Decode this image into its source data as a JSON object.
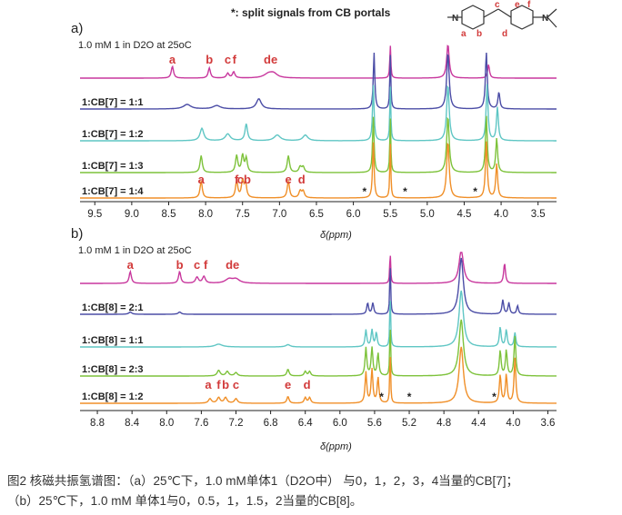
{
  "header": {
    "legend_note": "*: split signals from CB portals",
    "structure_labels": [
      "a",
      "b",
      "c",
      "d",
      "e",
      "f"
    ],
    "structure_name": "1"
  },
  "chart_data": [
    {
      "type": "line",
      "panel_label": "a)",
      "subtitle": "1.0 mM 1 in D2O at 25oC",
      "xlabel": "δ(ppm)",
      "xlim": [
        9.7,
        3.25
      ],
      "x_reversed": true,
      "x_ticks": [
        9.5,
        9.0,
        8.5,
        8.0,
        7.5,
        7.0,
        6.5,
        6.0,
        5.5,
        5.0,
        4.5,
        4.0,
        3.5
      ],
      "x_tick_labels": [
        "9.5",
        "9.0",
        "8.5",
        "8.0",
        "7.5",
        "7.0",
        "6.5",
        "6.0",
        "5.5",
        "5.0",
        "4.5",
        "4.0",
        "3.5"
      ],
      "series": [
        {
          "name": "",
          "color": "#c8379d",
          "peaks": [
            [
              8.45,
              0.35,
              0.018
            ],
            [
              7.95,
              0.3,
              0.018
            ],
            [
              7.7,
              0.14,
              0.02
            ],
            [
              7.62,
              0.18,
              0.02
            ],
            [
              7.15,
              0.12,
              0.07
            ],
            [
              7.08,
              0.12,
              0.06
            ],
            [
              5.5,
              1.0,
              0.008
            ],
            [
              4.72,
              1.0,
              0.02
            ],
            [
              4.17,
              0.4,
              0.015
            ]
          ],
          "labels": [
            {
              "text": "a",
              "x": 8.45
            },
            {
              "text": "b",
              "x": 7.95
            },
            {
              "text": "c",
              "x": 7.7
            },
            {
              "text": "f",
              "x": 7.61
            },
            {
              "text": "de",
              "x": 7.12
            }
          ]
        },
        {
          "name": "1:CB[7] = 1:1",
          "color": "#4b4da6",
          "peaks": [
            [
              8.25,
              0.08,
              0.06
            ],
            [
              7.85,
              0.06,
              0.06
            ],
            [
              7.28,
              0.18,
              0.04
            ],
            [
              5.72,
              1.0,
              0.012
            ],
            [
              5.5,
              1.0,
              0.008
            ],
            [
              4.72,
              1.0,
              0.02
            ],
            [
              4.2,
              1.0,
              0.015
            ],
            [
              4.03,
              0.3,
              0.015
            ]
          ]
        },
        {
          "name": "1:CB[7] = 1:2",
          "color": "#5fc6c4",
          "peaks": [
            [
              8.05,
              0.22,
              0.03
            ],
            [
              7.7,
              0.12,
              0.04
            ],
            [
              7.45,
              0.3,
              0.02
            ],
            [
              7.03,
              0.1,
              0.05
            ],
            [
              6.65,
              0.1,
              0.04
            ],
            [
              5.73,
              1.0,
              0.012
            ],
            [
              5.5,
              1.0,
              0.008
            ],
            [
              4.72,
              1.0,
              0.02
            ],
            [
              4.19,
              1.0,
              0.015
            ],
            [
              4.05,
              0.6,
              0.015
            ]
          ]
        },
        {
          "name": "1:CB[7] = 1:3",
          "color": "#7dc23a",
          "peaks": [
            [
              8.06,
              0.3,
              0.018
            ],
            [
              7.58,
              0.3,
              0.018
            ],
            [
              7.5,
              0.3,
              0.018
            ],
            [
              7.45,
              0.25,
              0.018
            ],
            [
              6.88,
              0.3,
              0.018
            ],
            [
              6.72,
              0.1,
              0.02
            ],
            [
              6.68,
              0.1,
              0.02
            ],
            [
              5.73,
              1.0,
              0.012
            ],
            [
              5.5,
              1.0,
              0.008
            ],
            [
              4.72,
              1.0,
              0.02
            ],
            [
              4.2,
              1.0,
              0.015
            ],
            [
              4.06,
              0.6,
              0.015
            ]
          ]
        },
        {
          "name": "1:CB[7] = 1:4",
          "color": "#f08f28",
          "peaks": [
            [
              8.06,
              0.3,
              0.018
            ],
            [
              7.58,
              0.3,
              0.018
            ],
            [
              7.5,
              0.3,
              0.018
            ],
            [
              7.46,
              0.25,
              0.018
            ],
            [
              6.88,
              0.3,
              0.018
            ],
            [
              6.72,
              0.12,
              0.02
            ],
            [
              6.68,
              0.12,
              0.02
            ],
            [
              5.73,
              1.0,
              0.012
            ],
            [
              5.5,
              1.0,
              0.008
            ],
            [
              4.72,
              1.0,
              0.02
            ],
            [
              4.2,
              1.0,
              0.015
            ],
            [
              4.06,
              0.6,
              0.015
            ]
          ],
          "labels": [
            {
              "text": "a",
              "x": 8.06
            },
            {
              "text": "f",
              "x": 7.58
            },
            {
              "text": "cb",
              "x": 7.48
            },
            {
              "text": "e",
              "x": 6.88
            },
            {
              "text": "d",
              "x": 6.7
            },
            {
              "text": "*",
              "x": 5.85
            },
            {
              "text": "*",
              "x": 5.3
            },
            {
              "text": "*",
              "x": 4.35
            }
          ]
        }
      ]
    },
    {
      "type": "line",
      "panel_label": "b)",
      "subtitle": "1.0 mM 1 in D2O at 25oC",
      "xlabel": "δ(ppm)",
      "xlim": [
        9.0,
        3.5
      ],
      "x_reversed": true,
      "x_ticks": [
        8.8,
        8.4,
        8.0,
        7.6,
        7.2,
        6.8,
        6.4,
        6.0,
        5.6,
        5.2,
        4.8,
        4.4,
        4.0,
        3.6
      ],
      "x_tick_labels": [
        "8.8",
        "8.4",
        "8.0",
        "7.6",
        "7.2",
        "6.8",
        "6.4",
        "6.0",
        "5.6",
        "5.2",
        "4.8",
        "4.4",
        "4.0",
        "3.6"
      ],
      "series": [
        {
          "name": "",
          "color": "#c8379d",
          "peaks": [
            [
              8.42,
              0.35,
              0.015
            ],
            [
              7.85,
              0.35,
              0.015
            ],
            [
              7.65,
              0.18,
              0.02
            ],
            [
              7.57,
              0.2,
              0.02
            ],
            [
              7.28,
              0.12,
              0.05
            ],
            [
              7.2,
              0.12,
              0.05
            ],
            [
              5.42,
              1.0,
              0.006
            ],
            [
              4.6,
              1.0,
              0.03
            ],
            [
              4.1,
              0.6,
              0.012
            ]
          ],
          "labels": [
            {
              "text": "a",
              "x": 8.42
            },
            {
              "text": "b",
              "x": 7.85
            },
            {
              "text": "c",
              "x": 7.65
            },
            {
              "text": "f",
              "x": 7.55
            },
            {
              "text": "de",
              "x": 7.24
            }
          ]
        },
        {
          "name": "1:CB[8] = 2:1",
          "color": "#4b4da6",
          "peaks": [
            [
              8.42,
              0.04,
              0.02
            ],
            [
              7.85,
              0.04,
              0.02
            ],
            [
              5.68,
              0.2,
              0.012
            ],
            [
              5.62,
              0.2,
              0.012
            ],
            [
              5.42,
              1.0,
              0.006
            ],
            [
              4.6,
              1.0,
              0.03
            ],
            [
              4.12,
              0.25,
              0.012
            ],
            [
              4.05,
              0.2,
              0.012
            ],
            [
              3.95,
              0.15,
              0.012
            ]
          ]
        },
        {
          "name": "1:CB[8] = 1:1",
          "color": "#5fc6c4",
          "peaks": [
            [
              7.4,
              0.05,
              0.05
            ],
            [
              6.6,
              0.04,
              0.03
            ],
            [
              5.7,
              0.3,
              0.012
            ],
            [
              5.63,
              0.3,
              0.012
            ],
            [
              5.58,
              0.25,
              0.012
            ],
            [
              5.42,
              1.0,
              0.006
            ],
            [
              4.6,
              1.0,
              0.03
            ],
            [
              4.15,
              0.35,
              0.012
            ],
            [
              4.08,
              0.3,
              0.012
            ],
            [
              3.98,
              0.25,
              0.012
            ]
          ]
        },
        {
          "name": "1:CB[8] = 2:3",
          "color": "#7dc23a",
          "peaks": [
            [
              7.4,
              0.1,
              0.02
            ],
            [
              7.3,
              0.08,
              0.02
            ],
            [
              7.2,
              0.06,
              0.02
            ],
            [
              6.6,
              0.12,
              0.015
            ],
            [
              6.4,
              0.08,
              0.015
            ],
            [
              6.35,
              0.08,
              0.015
            ],
            [
              5.7,
              0.5,
              0.012
            ],
            [
              5.63,
              0.5,
              0.012
            ],
            [
              5.56,
              0.4,
              0.012
            ],
            [
              5.42,
              1.0,
              0.006
            ],
            [
              4.6,
              1.0,
              0.03
            ],
            [
              4.15,
              0.45,
              0.012
            ],
            [
              4.08,
              0.45,
              0.012
            ],
            [
              3.98,
              0.7,
              0.012
            ]
          ]
        },
        {
          "name": "1:CB[8] = 1:2",
          "color": "#f08f28",
          "peaks": [
            [
              7.5,
              0.08,
              0.02
            ],
            [
              7.4,
              0.1,
              0.02
            ],
            [
              7.32,
              0.1,
              0.02
            ],
            [
              7.2,
              0.08,
              0.02
            ],
            [
              6.6,
              0.12,
              0.015
            ],
            [
              6.4,
              0.1,
              0.015
            ],
            [
              6.35,
              0.1,
              0.015
            ],
            [
              5.7,
              0.55,
              0.012
            ],
            [
              5.63,
              0.6,
              0.012
            ],
            [
              5.56,
              0.45,
              0.012
            ],
            [
              5.42,
              1.0,
              0.006
            ],
            [
              4.6,
              1.0,
              0.03
            ],
            [
              4.15,
              0.5,
              0.012
            ],
            [
              4.08,
              0.5,
              0.012
            ],
            [
              3.98,
              0.8,
              0.012
            ]
          ],
          "labels": [
            {
              "text": "a",
              "x": 7.52
            },
            {
              "text": "f",
              "x": 7.4
            },
            {
              "text": "b",
              "x": 7.32
            },
            {
              "text": "c",
              "x": 7.2
            },
            {
              "text": "e",
              "x": 6.6
            },
            {
              "text": "d",
              "x": 6.38
            },
            {
              "text": "*",
              "x": 5.52
            },
            {
              "text": "*",
              "x": 5.2
            },
            {
              "text": "*",
              "x": 4.22
            }
          ]
        }
      ]
    }
  ],
  "caption": {
    "line1": "图2 核磁共振氢谱图：（a）25℃下，1.0 mM单体1（D2O中） 与0，1，2，3，4当量的CB[7]；",
    "line2": "（b）25℃下，1.0 mM 单体1与0，0.5，1，1.5，2当量的CB[8]。"
  }
}
